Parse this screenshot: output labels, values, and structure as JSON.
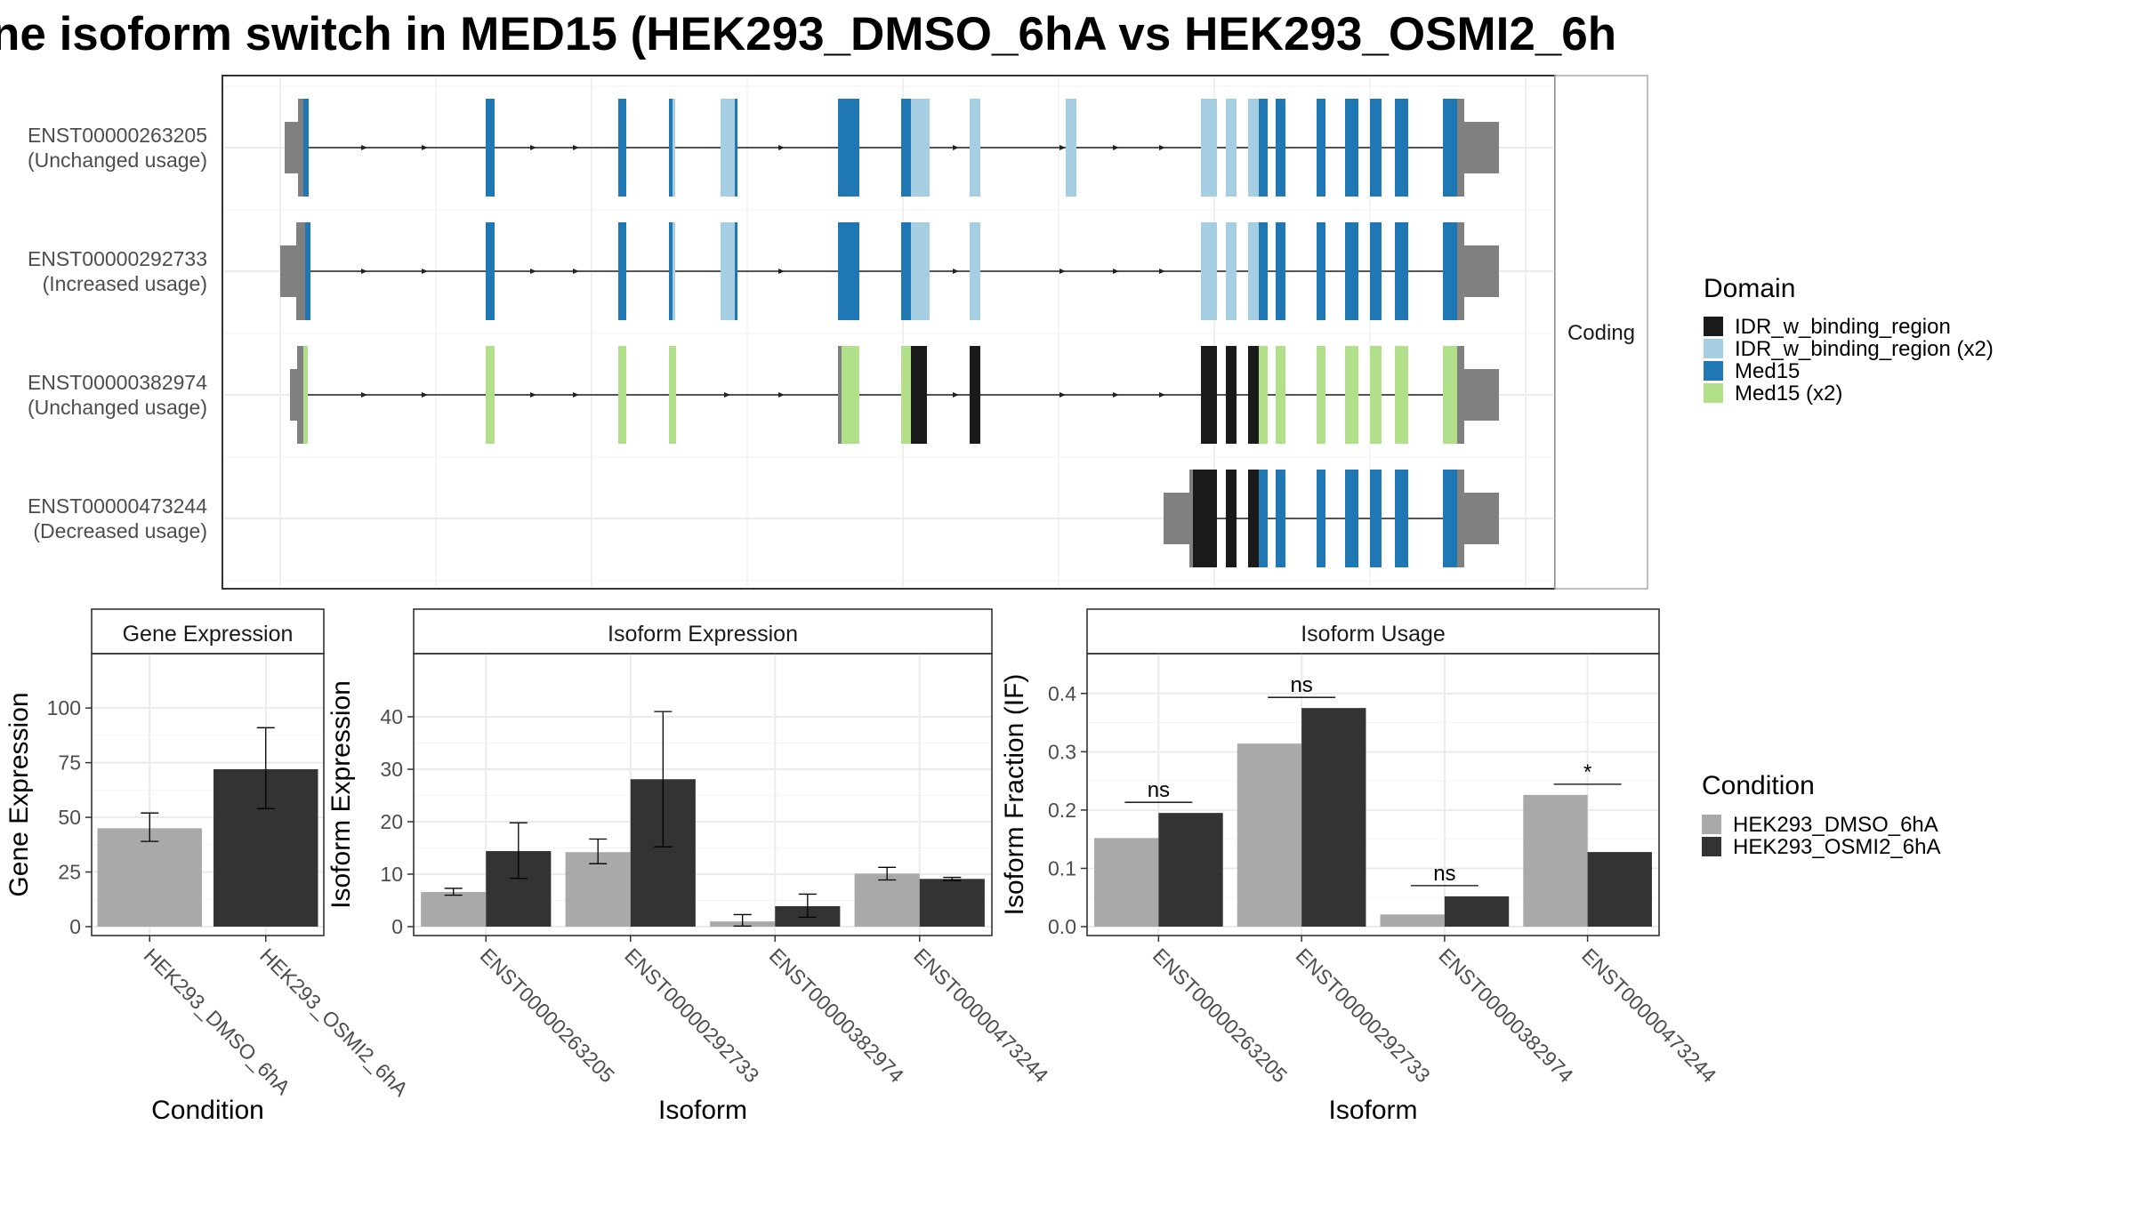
{
  "title": "ne isoform switch in MED15 (HEK293_DMSO_6hA vs HEK293_OSMI2_6h",
  "colors": {
    "dmso": "#a9a9a9",
    "osmi": "#333333",
    "idr": "#1a1a1a",
    "idr_x2": "#a6cee3",
    "med15": "#1f78b4",
    "med15_x2": "#b2df8a",
    "utr": "#808080",
    "panel_border": "#333333",
    "strip_bg": "#ffffff"
  },
  "structure": {
    "facet_label": "Coding",
    "legend_title": "Domain",
    "legend_items": [
      {
        "label": "IDR_w_binding_region",
        "color": "#1a1a1a"
      },
      {
        "label": "IDR_w_binding_region (x2)",
        "color": "#a6cee3"
      },
      {
        "label": "Med15",
        "color": "#1f78b4"
      },
      {
        "label": "Med15 (x2)",
        "color": "#b2df8a"
      }
    ],
    "isoforms": [
      {
        "id": "ENST00000263205",
        "status": "(Unchanged usage)"
      },
      {
        "id": "ENST00000292733",
        "status": "(Increased usage)"
      },
      {
        "id": "ENST00000382974",
        "status": "(Unchanged usage)"
      },
      {
        "id": "ENST00000473244",
        "status": "(Decreased usage)"
      }
    ]
  },
  "condition_legend": {
    "title": "Condition",
    "items": [
      {
        "label": "HEK293_DMSO_6hA",
        "color": "#a9a9a9"
      },
      {
        "label": "HEK293_OSMI2_6hA",
        "color": "#333333"
      }
    ]
  },
  "chart_data": [
    {
      "type": "bar",
      "title": "Gene Expression",
      "xlabel": "Condition",
      "ylabel": "Gene Expression",
      "categories": [
        "HEK293_DMSO_6hA",
        "HEK293_OSMI2_6hA"
      ],
      "ylim": [
        0,
        120
      ],
      "yticks": [
        0,
        25,
        50,
        75,
        100
      ],
      "series": [
        {
          "values": [
            45,
            72
          ],
          "errors": [
            [
              39,
              52
            ],
            [
              54,
              91
            ]
          ]
        }
      ]
    },
    {
      "type": "bar",
      "title": "Isoform Expression",
      "xlabel": "Isoform",
      "ylabel": "Isoform Expression",
      "categories": [
        "ENST00000263205",
        "ENST00000292733",
        "ENST00000382974",
        "ENST00000473244"
      ],
      "ylim": [
        0,
        50
      ],
      "yticks": [
        0,
        10,
        20,
        30,
        40
      ],
      "series": [
        {
          "name": "HEK293_DMSO_6hA",
          "values": [
            6.6,
            14.2,
            1.0,
            10.1
          ],
          "errors": [
            [
              6.0,
              7.3
            ],
            [
              12.0,
              16.7
            ],
            [
              0.1,
              2.3
            ],
            [
              8.9,
              11.3
            ]
          ]
        },
        {
          "name": "HEK293_OSMI2_6hA",
          "values": [
            14.4,
            28.1,
            3.9,
            9.1
          ],
          "errors": [
            [
              9.2,
              19.8
            ],
            [
              15.2,
              41.0
            ],
            [
              1.8,
              6.2
            ],
            [
              8.8,
              9.4
            ]
          ]
        }
      ]
    },
    {
      "type": "bar",
      "title": "Isoform Usage",
      "xlabel": "Isoform",
      "ylabel": "Isoform Fraction (IF)",
      "categories": [
        "ENST00000263205",
        "ENST00000292733",
        "ENST00000382974",
        "ENST00000473244"
      ],
      "ylim": [
        0,
        0.45
      ],
      "yticks": [
        0.0,
        0.1,
        0.2,
        0.3,
        0.4
      ],
      "ytick_labels": [
        "0.0",
        "0.1",
        "0.2",
        "0.3",
        "0.4"
      ],
      "series": [
        {
          "name": "HEK293_DMSO_6hA",
          "values": [
            0.152,
            0.314,
            0.021,
            0.226
          ]
        },
        {
          "name": "HEK293_OSMI2_6hA",
          "values": [
            0.195,
            0.375,
            0.052,
            0.128
          ]
        }
      ],
      "significance": [
        "ns",
        "ns",
        "ns",
        "*"
      ]
    }
  ]
}
